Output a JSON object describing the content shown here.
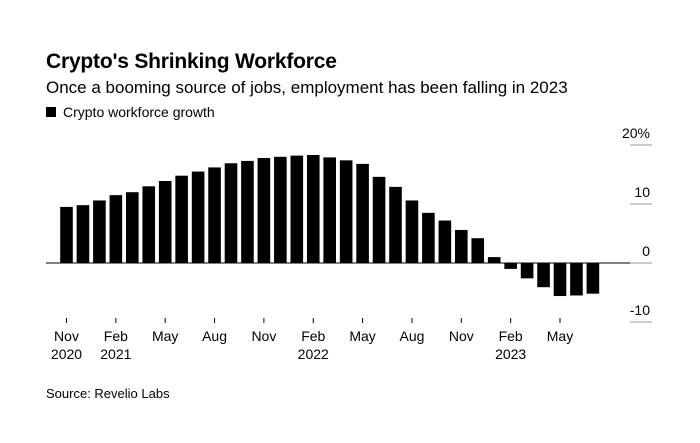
{
  "chart_data": {
    "type": "bar",
    "title": "Crypto's Shrinking Workforce",
    "subtitle": "Once a booming source of jobs, employment has been falling in 2023",
    "legend": [
      "Crypto workforce growth"
    ],
    "source": "Source: Revelio Labs",
    "ylim": [
      -10,
      20
    ],
    "y_ticks": [
      {
        "value": 20,
        "label": "20%"
      },
      {
        "value": 10,
        "label": "10"
      },
      {
        "value": 0,
        "label": "0"
      },
      {
        "value": -10,
        "label": "-10"
      }
    ],
    "categories": [
      "Nov 2020",
      "Dec 2020",
      "Jan 2021",
      "Feb 2021",
      "Mar 2021",
      "Apr 2021",
      "May 2021",
      "Jun 2021",
      "Jul 2021",
      "Aug 2021",
      "Sep 2021",
      "Oct 2021",
      "Nov 2021",
      "Dec 2021",
      "Jan 2022",
      "Feb 2022",
      "Mar 2022",
      "Apr 2022",
      "May 2022",
      "Jun 2022",
      "Jul 2022",
      "Aug 2022",
      "Sep 2022",
      "Oct 2022",
      "Nov 2022",
      "Dec 2022",
      "Jan 2023",
      "Feb 2023",
      "Mar 2023",
      "Apr 2023",
      "May 2023",
      "Jun 2023",
      "Jul 2023"
    ],
    "values": [
      9.5,
      9.8,
      10.6,
      11.5,
      12.0,
      13.0,
      13.9,
      14.8,
      15.5,
      16.2,
      16.9,
      17.3,
      17.8,
      18.0,
      18.2,
      18.3,
      17.9,
      17.4,
      16.8,
      14.6,
      12.9,
      10.6,
      8.5,
      7.2,
      5.6,
      4.2,
      1.0,
      -1.0,
      -2.6,
      -4.1,
      -5.6,
      -5.5,
      -5.2
    ],
    "x_ticks": [
      {
        "index": 0,
        "lines": [
          "Nov",
          "2020"
        ]
      },
      {
        "index": 3,
        "lines": [
          "Feb",
          "2021"
        ]
      },
      {
        "index": 6,
        "lines": [
          "May"
        ]
      },
      {
        "index": 9,
        "lines": [
          "Aug"
        ]
      },
      {
        "index": 12,
        "lines": [
          "Nov"
        ]
      },
      {
        "index": 15,
        "lines": [
          "Feb",
          "2022"
        ]
      },
      {
        "index": 18,
        "lines": [
          "May"
        ]
      },
      {
        "index": 21,
        "lines": [
          "Aug"
        ]
      },
      {
        "index": 24,
        "lines": [
          "Nov"
        ]
      },
      {
        "index": 27,
        "lines": [
          "Feb",
          "2023"
        ]
      },
      {
        "index": 30,
        "lines": [
          "May"
        ]
      }
    ]
  }
}
